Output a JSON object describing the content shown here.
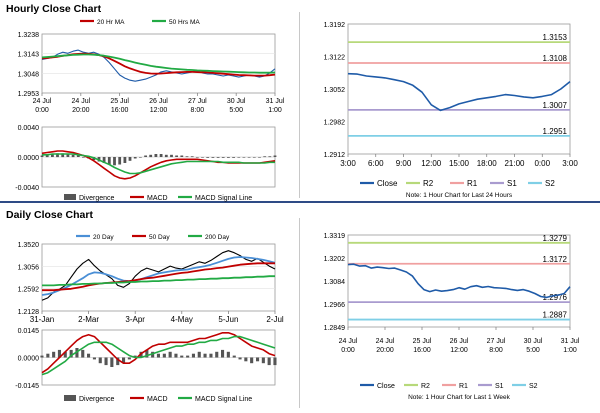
{
  "hourly_title": "Hourly Close Chart",
  "daily_title": "Daily Close Chart",
  "colors": {
    "close": "#1f5ba8",
    "ma_short": "#c00000",
    "ma_long": "#22aa44",
    "divergence": "#555555",
    "macd": "#c00000",
    "signal": "#22aa44",
    "r2": "#b7d97a",
    "r1": "#f0a0a0",
    "s1": "#a99bcf",
    "s2": "#7fcfe6",
    "separator": "#2e4b86"
  },
  "chart_data": [
    {
      "id": "hourly_price",
      "type": "line",
      "title": "",
      "ylim": [
        1.2953,
        1.3238
      ],
      "y_ticks": [
        "1.3238",
        "1.3143",
        "1.3048",
        "1.2953"
      ],
      "x_ticks": [
        [
          "24 Jul",
          "0:00"
        ],
        [
          "24 Jul",
          "20:00"
        ],
        [
          "25 Jul",
          "16:00"
        ],
        [
          "26 Jul",
          "12:00"
        ],
        [
          "27 Jul",
          "8:00"
        ],
        [
          "30 Jul",
          "5:00"
        ],
        [
          "31 Jul",
          "1:00"
        ]
      ],
      "legend": [
        "20 Hr MA",
        "50 Hrs MA"
      ],
      "series": [
        {
          "name": "Close",
          "values": [
            1.3115,
            1.312,
            1.3125,
            1.314,
            1.315,
            1.3145,
            1.3155,
            1.316,
            1.315,
            1.3145,
            1.315,
            1.314,
            1.3125,
            1.31,
            1.307,
            1.304,
            1.3025,
            1.3015,
            1.301,
            1.3015,
            1.302,
            1.303,
            1.304,
            1.3055,
            1.306,
            1.3055,
            1.305,
            1.3045,
            1.305,
            1.3055,
            1.306,
            1.305,
            1.3045,
            1.3045,
            1.304,
            1.3035,
            1.304,
            1.3035,
            1.303,
            1.3035,
            1.304,
            1.3035,
            1.303,
            1.3035,
            1.305,
            1.307
          ]
        },
        {
          "name": "20 Hr MA",
          "values": [
            1.312,
            1.3122,
            1.3125,
            1.3128,
            1.3132,
            1.3136,
            1.314,
            1.3142,
            1.3143,
            1.3142,
            1.314,
            1.3136,
            1.313,
            1.312,
            1.3108,
            1.3095,
            1.3082,
            1.3072,
            1.3063,
            1.3055,
            1.305,
            1.3047,
            1.3046,
            1.3047,
            1.3049,
            1.3051,
            1.3053,
            1.3054,
            1.3055,
            1.3055,
            1.3054,
            1.3053,
            1.3052,
            1.305,
            1.3048,
            1.3046,
            1.3044,
            1.3042,
            1.304,
            1.3039,
            1.3038,
            1.3037,
            1.3037,
            1.3037,
            1.3039,
            1.3042
          ]
        },
        {
          "name": "50 Hrs MA",
          "values": [
            1.3125,
            1.3127,
            1.3129,
            1.3131,
            1.3133,
            1.3135,
            1.3137,
            1.3138,
            1.3139,
            1.3139,
            1.3138,
            1.3136,
            1.3133,
            1.3129,
            1.3124,
            1.3118,
            1.3112,
            1.3106,
            1.31,
            1.3094,
            1.3089,
            1.3084,
            1.308,
            1.3077,
            1.3074,
            1.3071,
            1.3069,
            1.3067,
            1.3065,
            1.3064,
            1.3062,
            1.3061,
            1.306,
            1.3059,
            1.3058,
            1.3057,
            1.3056,
            1.3055,
            1.3054,
            1.3053,
            1.3052,
            1.3052,
            1.3051,
            1.3051,
            1.3051,
            1.3052
          ]
        }
      ]
    },
    {
      "id": "hourly_macd",
      "type": "line",
      "title": "",
      "ylim": [
        -0.004,
        0.004
      ],
      "y_ticks": [
        "0.0040",
        "0.0000",
        "-0.0040"
      ],
      "legend": [
        "Divergence",
        "MACD",
        "MACD Signal Line"
      ],
      "series": [
        {
          "name": "Divergence",
          "values": [
            0.0002,
            0.0003,
            0.0004,
            0.0005,
            0.0005,
            0.0004,
            0.0003,
            0.0002,
            0.0,
            -0.0002,
            -0.0004,
            -0.0006,
            -0.0008,
            -0.001,
            -0.0011,
            -0.001,
            -0.0008,
            -0.0005,
            -0.0002,
            0.0,
            0.0002,
            0.0003,
            0.0004,
            0.0004,
            0.0003,
            0.0003,
            0.0002,
            0.0002,
            0.0001,
            0.0001,
            0.0,
            0.0,
            -0.0001,
            -0.0001,
            -0.0001,
            -0.0001,
            -0.0001,
            -0.0001,
            0.0,
            0.0,
            0.0,
            0.0,
            0.0,
            0.0001,
            0.0001,
            0.0002
          ]
        },
        {
          "name": "MACD",
          "values": [
            0.0005,
            0.0006,
            0.0007,
            0.0008,
            0.0008,
            0.0007,
            0.0006,
            0.0004,
            0.0002,
            -0.0001,
            -0.0005,
            -0.001,
            -0.0015,
            -0.002,
            -0.0025,
            -0.0028,
            -0.0029,
            -0.0028,
            -0.0025,
            -0.0021,
            -0.0017,
            -0.0013,
            -0.001,
            -0.0007,
            -0.0005,
            -0.0004,
            -0.0003,
            -0.0003,
            -0.0003,
            -0.0003,
            -0.0003,
            -0.0004,
            -0.0005,
            -0.0006,
            -0.0007,
            -0.0007,
            -0.0008,
            -0.0008,
            -0.0008,
            -0.0008,
            -0.0008,
            -0.0008,
            -0.0008,
            -0.0007,
            -0.0006,
            -0.0005
          ]
        },
        {
          "name": "MACD Signal Line",
          "values": [
            0.0003,
            0.0003,
            0.0004,
            0.0004,
            0.0004,
            0.0004,
            0.0004,
            0.0003,
            0.0002,
            0.0001,
            -0.0001,
            -0.0004,
            -0.0007,
            -0.001,
            -0.0014,
            -0.0017,
            -0.002,
            -0.0022,
            -0.0022,
            -0.0021,
            -0.0019,
            -0.0017,
            -0.0015,
            -0.0013,
            -0.0011,
            -0.0009,
            -0.0008,
            -0.0007,
            -0.0006,
            -0.0006,
            -0.0006,
            -0.0006,
            -0.0006,
            -0.0006,
            -0.0006,
            -0.0007,
            -0.0007,
            -0.0007,
            -0.0007,
            -0.0008,
            -0.0008,
            -0.0008,
            -0.0008,
            -0.0008,
            -0.0007,
            -0.0007
          ]
        }
      ]
    },
    {
      "id": "hourly_pivots",
      "type": "line",
      "title": "",
      "ylim": [
        1.2912,
        1.3192
      ],
      "y_ticks": [
        "1.3192",
        "1.3122",
        "1.3052",
        "1.2982",
        "1.2912"
      ],
      "x_ticks": [
        "3:00",
        "6:00",
        "9:00",
        "12:00",
        "15:00",
        "18:00",
        "21:00",
        "0:00",
        "3:00"
      ],
      "levels": [
        {
          "name": "R2",
          "value": 1.3153,
          "label": "1.3153"
        },
        {
          "name": "R1",
          "value": 1.3108,
          "label": "1.3108"
        },
        {
          "name": "S1",
          "value": 1.3007,
          "label": "1.3007"
        },
        {
          "name": "S2",
          "value": 1.2951,
          "label": "1.2951"
        }
      ],
      "legend": [
        "Close",
        "R2",
        "R1",
        "S1",
        "S2"
      ],
      "note": "Note: 1 Hour Chart for Last 24 Hours",
      "series": [
        {
          "name": "Close",
          "values": [
            1.3085,
            1.3084,
            1.308,
            1.3078,
            1.3076,
            1.3072,
            1.3068,
            1.306,
            1.3045,
            1.3018,
            1.3006,
            1.3012,
            1.302,
            1.3025,
            1.303,
            1.3033,
            1.3036,
            1.304,
            1.3038,
            1.3035,
            1.3033,
            1.3036,
            1.304,
            1.3052,
            1.3068
          ]
        }
      ]
    },
    {
      "id": "daily_price",
      "type": "line",
      "title": "",
      "ylim": [
        1.2128,
        1.352
      ],
      "y_ticks": [
        "1.3520",
        "1.3056",
        "1.2592",
        "1.2128"
      ],
      "x_ticks": [
        "31-Jan",
        "2-Mar",
        "3-Apr",
        "4-May",
        "5-Jun",
        "2-Jul"
      ],
      "legend": [
        "20 Day",
        "50 Day",
        "200 Day"
      ],
      "series": [
        {
          "name": "Close",
          "values": [
            1.235,
            1.24,
            1.252,
            1.258,
            1.266,
            1.283,
            1.3,
            1.312,
            1.32,
            1.307,
            1.296,
            1.288,
            1.28,
            1.266,
            1.262,
            1.27,
            1.285,
            1.296,
            1.302,
            1.298,
            1.294,
            1.3,
            1.306,
            1.302,
            1.3,
            1.305,
            1.31,
            1.315,
            1.312,
            1.318,
            1.326,
            1.334,
            1.338,
            1.334,
            1.328,
            1.32,
            1.316,
            1.322,
            1.314,
            1.306,
            1.3
          ]
        },
        {
          "name": "20 Day",
          "values": [
            1.246,
            1.248,
            1.251,
            1.256,
            1.261,
            1.267,
            1.274,
            1.281,
            1.289,
            1.293,
            1.292,
            1.289,
            1.285,
            1.28,
            1.276,
            1.275,
            1.276,
            1.279,
            1.283,
            1.287,
            1.291,
            1.293,
            1.295,
            1.297,
            1.298,
            1.299,
            1.302,
            1.304,
            1.306,
            1.309,
            1.313,
            1.317,
            1.321,
            1.324,
            1.325,
            1.324,
            1.323,
            1.321,
            1.319,
            1.316,
            1.313
          ]
        },
        {
          "name": "50 Day",
          "values": [
            1.256,
            1.256,
            1.256,
            1.257,
            1.258,
            1.259,
            1.261,
            1.263,
            1.266,
            1.268,
            1.27,
            1.271,
            1.272,
            1.273,
            1.274,
            1.275,
            1.277,
            1.279,
            1.281,
            1.282,
            1.284,
            1.286,
            1.288,
            1.29,
            1.292,
            1.293,
            1.295,
            1.297,
            1.299,
            1.3,
            1.302,
            1.303,
            1.305,
            1.307,
            1.309,
            1.31,
            1.311,
            1.312,
            1.312,
            1.312,
            1.312
          ]
        },
        {
          "name": "200 Day",
          "values": [
            1.266,
            1.266,
            1.266,
            1.267,
            1.267,
            1.268,
            1.268,
            1.269,
            1.269,
            1.27,
            1.27,
            1.271,
            1.271,
            1.272,
            1.272,
            1.273,
            1.273,
            1.274,
            1.274,
            1.275,
            1.275,
            1.276,
            1.276,
            1.277,
            1.277,
            1.278,
            1.278,
            1.279,
            1.279,
            1.28,
            1.28,
            1.281,
            1.281,
            1.282,
            1.282,
            1.283,
            1.283,
            1.284,
            1.284,
            1.285,
            1.285
          ]
        }
      ]
    },
    {
      "id": "daily_macd",
      "type": "line",
      "title": "",
      "ylim": [
        -0.0145,
        0.0145
      ],
      "y_ticks": [
        "0.0145",
        "0.0000",
        "-0.0145"
      ],
      "legend": [
        "Divergence",
        "MACD",
        "MACD Signal Line"
      ],
      "series": [
        {
          "name": "Divergence",
          "values": [
            0.001,
            0.002,
            0.003,
            0.004,
            0.003,
            0.004,
            0.005,
            0.004,
            0.002,
            -0.001,
            -0.003,
            -0.004,
            -0.005,
            -0.004,
            -0.003,
            -0.001,
            0.001,
            0.003,
            0.004,
            0.003,
            0.002,
            0.002,
            0.003,
            0.002,
            0.001,
            0.001,
            0.002,
            0.003,
            0.002,
            0.002,
            0.003,
            0.004,
            0.003,
            0.001,
            -0.001,
            -0.002,
            -0.003,
            -0.002,
            -0.003,
            -0.004,
            -0.004
          ]
        },
        {
          "name": "MACD",
          "values": [
            -0.008,
            -0.006,
            -0.003,
            0.0,
            0.003,
            0.006,
            0.009,
            0.011,
            0.012,
            0.011,
            0.008,
            0.005,
            0.002,
            -0.001,
            -0.003,
            -0.003,
            -0.001,
            0.002,
            0.004,
            0.006,
            0.007,
            0.007,
            0.008,
            0.008,
            0.008,
            0.008,
            0.009,
            0.01,
            0.01,
            0.011,
            0.012,
            0.013,
            0.013,
            0.012,
            0.01,
            0.008,
            0.006,
            0.005,
            0.004,
            0.002,
            0.001
          ]
        },
        {
          "name": "MACD Signal Line",
          "values": [
            -0.009,
            -0.008,
            -0.006,
            -0.004,
            -0.002,
            0.001,
            0.003,
            0.005,
            0.007,
            0.008,
            0.008,
            0.008,
            0.007,
            0.005,
            0.003,
            0.001,
            0.0,
            0.0,
            0.001,
            0.002,
            0.003,
            0.004,
            0.005,
            0.006,
            0.006,
            0.007,
            0.007,
            0.008,
            0.008,
            0.009,
            0.009,
            0.01,
            0.01,
            0.011,
            0.011,
            0.01,
            0.009,
            0.008,
            0.007,
            0.006,
            0.005
          ]
        }
      ]
    },
    {
      "id": "weekly_pivots",
      "type": "line",
      "title": "",
      "ylim": [
        1.2849,
        1.3319
      ],
      "y_ticks": [
        "1.3319",
        "1.3202",
        "1.3084",
        "1.2966",
        "1.2849"
      ],
      "x_ticks": [
        [
          "24 Jul",
          "0:00"
        ],
        [
          "24 Jul",
          "20:00"
        ],
        [
          "25 Jul",
          "16:00"
        ],
        [
          "26 Jul",
          "12:00"
        ],
        [
          "27 Jul",
          "8:00"
        ],
        [
          "30 Jul",
          "5:00"
        ],
        [
          "31 Jul",
          "1:00"
        ]
      ],
      "levels": [
        {
          "name": "R2",
          "value": 1.3279,
          "label": "1.3279"
        },
        {
          "name": "R1",
          "value": 1.3172,
          "label": "1.3172"
        },
        {
          "name": "S1",
          "value": 1.2976,
          "label": "1.2976"
        },
        {
          "name": "S2",
          "value": 1.2887,
          "label": "1.2887"
        }
      ],
      "legend": [
        "Close",
        "R2",
        "R1",
        "S1",
        "S2"
      ],
      "note": "Note: 1 Hour Chart for Last 1 Week",
      "series": [
        {
          "name": "Close",
          "values": [
            1.3168,
            1.317,
            1.316,
            1.3162,
            1.315,
            1.3155,
            1.3152,
            1.3148,
            1.315,
            1.314,
            1.313,
            1.311,
            1.307,
            1.304,
            1.303,
            1.3038,
            1.3032,
            1.3035,
            1.304,
            1.305,
            1.3042,
            1.3055,
            1.306,
            1.3052,
            1.3056,
            1.305,
            1.3048,
            1.3046,
            1.304,
            1.3036,
            1.304,
            1.3032,
            1.302,
            1.3005,
            1.3,
            1.3008,
            1.3012,
            1.302,
            1.3055
          ]
        }
      ]
    }
  ]
}
